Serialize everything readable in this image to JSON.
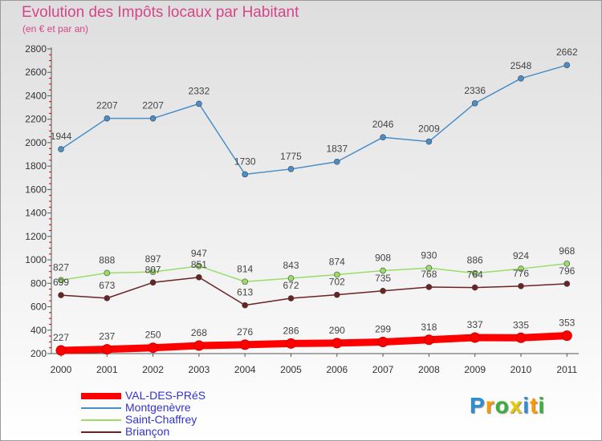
{
  "chart_data": {
    "type": "line",
    "title": "Evolution des Impôts locaux par Habitant",
    "subtitle": "(en € et par an)",
    "categories": [
      "2000",
      "2001",
      "2002",
      "2003",
      "2004",
      "2005",
      "2006",
      "2007",
      "2008",
      "2009",
      "2010",
      "2011"
    ],
    "ylim": [
      200,
      2800
    ],
    "yticks": [
      200,
      400,
      600,
      800,
      1000,
      1200,
      1400,
      1600,
      1800,
      2000,
      2200,
      2400,
      2600,
      2800
    ],
    "grid": false,
    "legend_placement": "bottom-left",
    "series": [
      {
        "name": "VAL-DES-PRéS",
        "color": "#ff0000",
        "values": [
          227,
          237,
          250,
          268,
          276,
          286,
          290,
          299,
          318,
          337,
          335,
          353
        ]
      },
      {
        "name": "Montgenèvre",
        "color": "#4a8ec9",
        "values": [
          1944,
          2207,
          2207,
          2332,
          1730,
          1775,
          1837,
          2046,
          2009,
          2336,
          2548,
          2662
        ]
      },
      {
        "name": "Saint-Chaffrey",
        "color": "#99dd66",
        "values": [
          827,
          888,
          897,
          947,
          814,
          843,
          874,
          908,
          930,
          886,
          924,
          968
        ]
      },
      {
        "name": "Briançon",
        "color": "#6b2222",
        "values": [
          699,
          673,
          807,
          851,
          613,
          672,
          702,
          735,
          768,
          764,
          776,
          796
        ]
      }
    ]
  },
  "brand": {
    "letters": [
      "P",
      "r",
      "o",
      "x",
      "i",
      "t",
      "i"
    ],
    "colors": [
      "#2a8fd8",
      "#ff9900",
      "#3cae3c",
      "#e8c800",
      "#2a8fd8",
      "#ff9900",
      "#3cae3c"
    ]
  }
}
